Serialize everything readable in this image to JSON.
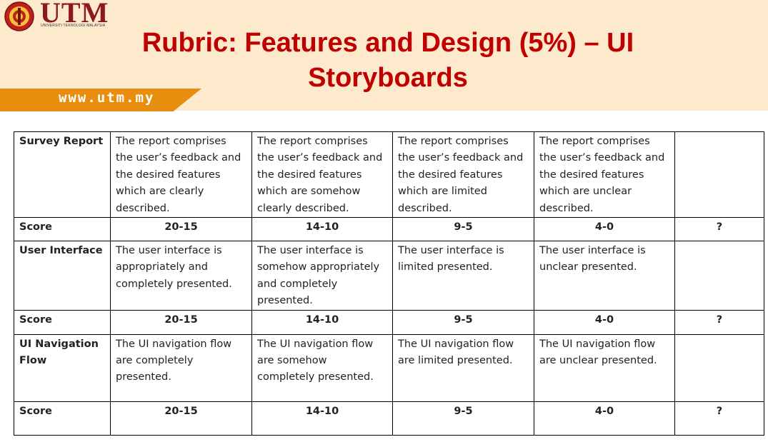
{
  "header": {
    "logo_text": "UTM",
    "logo_subtext": "UNIVERSITI TEKNOLOGI MALAYSIA",
    "website": "www.utm.my",
    "title_line1": "Rubric: Features and Design (5%) – UI",
    "title_line2": "Storyboards",
    "colors": {
      "title": "#c00000",
      "banner": "#e88e0f",
      "header_bg": "#fde9cc",
      "logo": "#8b1a1a"
    }
  },
  "rubric": {
    "rows": [
      {
        "label": "Survey Report",
        "cells": [
          "The report comprises the user’s feedback and the desired features which are clearly described.",
          "The report comprises the user’s feedback and the desired features which are somehow clearly described.",
          "The report comprises the user’s feedback and the desired features which are limited described.",
          "The report comprises the user’s feedback and the desired features which are unclear described.",
          ""
        ]
      },
      {
        "label": "Score",
        "cells": [
          "20-15",
          "14-10",
          "9-5",
          "4-0",
          "?"
        ]
      },
      {
        "label": "User Interface",
        "cells": [
          "The user interface is appropriately and completely presented.",
          "The user interface is somehow appropriately and completely presented.",
          "The user interface is limited presented.",
          "The user interface is unclear presented.",
          ""
        ]
      },
      {
        "label": "Score",
        "cells": [
          "20-15",
          "14-10",
          "9-5",
          "4-0",
          "?"
        ]
      },
      {
        "label": "UI Navigation Flow",
        "cells": [
          "The UI navigation flow are completely presented.",
          "The UI navigation flow are somehow completely presented.",
          "The UI navigation flow are limited presented.",
          "The UI navigation flow are unclear presented.",
          ""
        ]
      },
      {
        "label": "Score",
        "cells": [
          "20-15",
          "14-10",
          "9-5",
          "4-0",
          "?"
        ]
      }
    ]
  }
}
